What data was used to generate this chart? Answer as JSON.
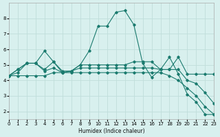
{
  "xlabel": "Humidex (Indice chaleur)",
  "bg_color": "#d8f0ee",
  "grid_color": "#c0deda",
  "line_color": "#1a7a6e",
  "xlim": [
    0,
    23
  ],
  "ylim": [
    1.5,
    9.0
  ],
  "xticks": [
    0,
    1,
    2,
    3,
    4,
    5,
    6,
    7,
    8,
    9,
    10,
    11,
    12,
    13,
    14,
    15,
    16,
    17,
    18,
    19,
    20,
    21,
    22,
    23
  ],
  "yticks": [
    2,
    3,
    4,
    5,
    6,
    7,
    8
  ],
  "lines": [
    {
      "x": [
        0,
        1,
        2,
        3,
        4,
        5,
        6,
        7,
        8,
        9,
        10,
        11,
        12,
        13,
        14,
        15,
        16,
        17,
        18,
        19,
        20,
        21,
        22,
        23
      ],
      "y": [
        4.3,
        4.7,
        5.1,
        5.1,
        5.9,
        5.2,
        4.5,
        4.6,
        5.0,
        5.9,
        7.5,
        7.5,
        8.4,
        8.5,
        7.6,
        5.1,
        4.2,
        4.7,
        5.5,
        4.4,
        3.1,
        2.6,
        1.8,
        1.8
      ]
    },
    {
      "x": [
        0,
        1,
        2,
        3,
        4,
        5,
        6,
        7,
        8,
        9,
        10,
        11,
        12,
        13,
        14,
        15,
        16,
        17,
        18,
        19,
        20,
        21,
        22,
        23
      ],
      "y": [
        4.3,
        4.7,
        5.1,
        5.1,
        4.7,
        5.2,
        4.6,
        4.6,
        5.0,
        5.0,
        5.0,
        5.0,
        5.0,
        5.0,
        5.2,
        5.2,
        5.2,
        4.7,
        4.7,
        5.5,
        4.4,
        4.4,
        4.4,
        4.4
      ]
    },
    {
      "x": [
        0,
        1,
        2,
        3,
        4,
        5,
        6,
        7,
        8,
        9,
        10,
        11,
        12,
        13,
        14,
        15,
        16,
        17,
        18,
        19,
        20,
        21,
        22,
        23
      ],
      "y": [
        4.3,
        4.5,
        5.1,
        5.1,
        4.6,
        4.8,
        4.5,
        4.6,
        4.8,
        4.8,
        4.8,
        4.8,
        4.8,
        4.8,
        4.8,
        4.8,
        4.8,
        4.7,
        4.7,
        4.7,
        4.0,
        3.8,
        3.2,
        2.5
      ]
    },
    {
      "x": [
        0,
        1,
        2,
        3,
        4,
        5,
        6,
        7,
        8,
        9,
        10,
        11,
        12,
        13,
        14,
        15,
        16,
        17,
        18,
        19,
        20,
        21,
        22,
        23
      ],
      "y": [
        4.3,
        4.3,
        4.3,
        4.3,
        4.3,
        4.5,
        4.5,
        4.5,
        4.5,
        4.5,
        4.5,
        4.5,
        4.5,
        4.5,
        4.5,
        4.5,
        4.5,
        4.5,
        4.3,
        4.0,
        3.5,
        3.0,
        2.3,
        1.8
      ]
    }
  ]
}
